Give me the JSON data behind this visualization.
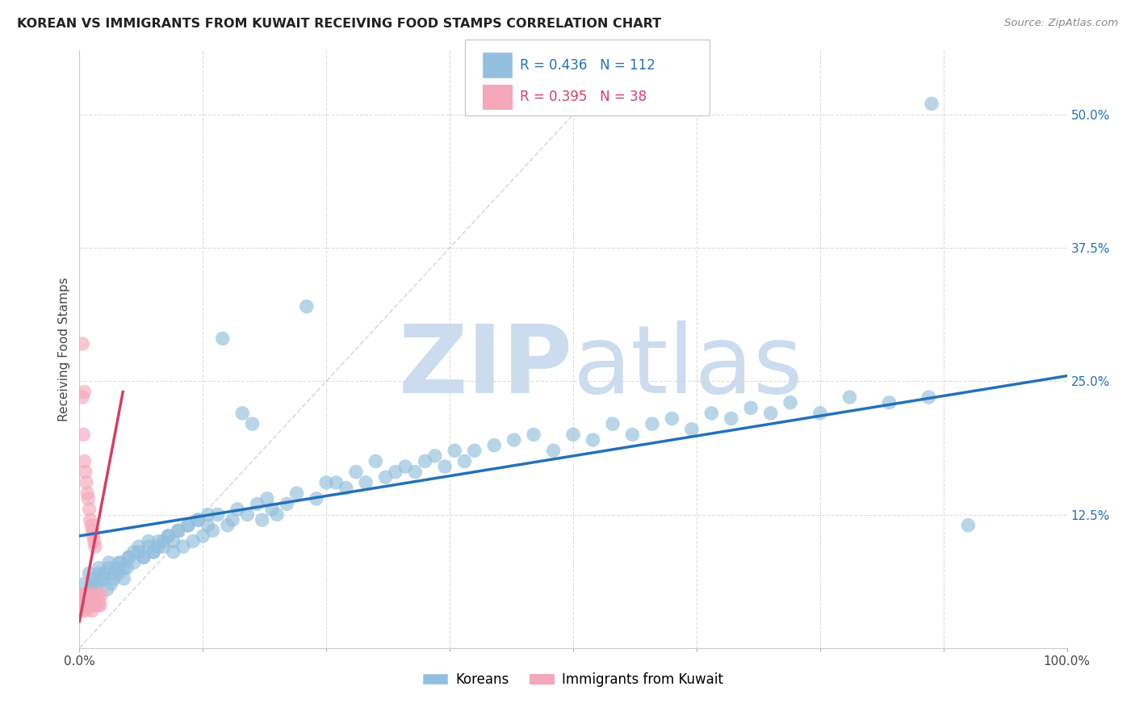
{
  "title": "KOREAN VS IMMIGRANTS FROM KUWAIT RECEIVING FOOD STAMPS CORRELATION CHART",
  "source": "Source: ZipAtlas.com",
  "ylabel": "Receiving Food Stamps",
  "xlim": [
    0,
    1
  ],
  "ylim": [
    0,
    0.56
  ],
  "xticks": [
    0,
    0.125,
    0.25,
    0.375,
    0.5,
    0.625,
    0.75,
    0.875,
    1.0
  ],
  "xticklabels": [
    "0.0%",
    "",
    "",
    "",
    "",
    "",
    "",
    "",
    "100.0%"
  ],
  "ytick_positions": [
    0.125,
    0.25,
    0.375,
    0.5
  ],
  "ytick_labels": [
    "12.5%",
    "25.0%",
    "37.5%",
    "50.0%"
  ],
  "blue_R": 0.436,
  "blue_N": 112,
  "pink_R": 0.395,
  "pink_N": 38,
  "blue_color": "#92bfdd",
  "pink_color": "#f4a8ba",
  "blue_line_color": "#2471b8",
  "pink_line_color": "#d63f60",
  "diagonal_color": "#cccccc",
  "watermark_color": "#ccdcee",
  "background_color": "#ffffff",
  "grid_color": "#dddddd",
  "legend_blue_label": "Koreans",
  "legend_pink_label": "Immigrants from Kuwait",
  "blue_line_x0": 0.0,
  "blue_line_y0": 0.105,
  "blue_line_x1": 1.0,
  "blue_line_y1": 0.255,
  "pink_line_x0": 0.0,
  "pink_line_y0": 0.025,
  "pink_line_x1": 0.044,
  "pink_line_y1": 0.24,
  "blue_scatter_x": [
    0.005,
    0.008,
    0.01,
    0.012,
    0.015,
    0.018,
    0.02,
    0.022,
    0.025,
    0.028,
    0.03,
    0.032,
    0.035,
    0.038,
    0.04,
    0.042,
    0.045,
    0.048,
    0.05,
    0.055,
    0.06,
    0.065,
    0.07,
    0.075,
    0.08,
    0.085,
    0.09,
    0.095,
    0.1,
    0.105,
    0.11,
    0.115,
    0.12,
    0.125,
    0.13,
    0.135,
    0.14,
    0.145,
    0.15,
    0.155,
    0.16,
    0.165,
    0.17,
    0.175,
    0.18,
    0.185,
    0.19,
    0.195,
    0.2,
    0.21,
    0.22,
    0.23,
    0.24,
    0.25,
    0.26,
    0.27,
    0.28,
    0.29,
    0.3,
    0.31,
    0.32,
    0.33,
    0.34,
    0.35,
    0.36,
    0.37,
    0.38,
    0.39,
    0.4,
    0.42,
    0.44,
    0.46,
    0.48,
    0.5,
    0.52,
    0.54,
    0.56,
    0.58,
    0.6,
    0.62,
    0.64,
    0.66,
    0.68,
    0.7,
    0.72,
    0.75,
    0.78,
    0.82,
    0.86,
    0.9,
    0.015,
    0.02,
    0.025,
    0.03,
    0.035,
    0.04,
    0.045,
    0.05,
    0.055,
    0.06,
    0.065,
    0.07,
    0.075,
    0.08,
    0.085,
    0.09,
    0.095,
    0.1,
    0.11,
    0.12,
    0.13,
    0.863
  ],
  "blue_scatter_y": [
    0.06,
    0.05,
    0.07,
    0.055,
    0.065,
    0.06,
    0.075,
    0.065,
    0.07,
    0.055,
    0.08,
    0.06,
    0.065,
    0.075,
    0.07,
    0.08,
    0.065,
    0.075,
    0.085,
    0.09,
    0.095,
    0.085,
    0.1,
    0.09,
    0.095,
    0.1,
    0.105,
    0.09,
    0.11,
    0.095,
    0.115,
    0.1,
    0.12,
    0.105,
    0.115,
    0.11,
    0.125,
    0.29,
    0.115,
    0.12,
    0.13,
    0.22,
    0.125,
    0.21,
    0.135,
    0.12,
    0.14,
    0.13,
    0.125,
    0.135,
    0.145,
    0.32,
    0.14,
    0.155,
    0.155,
    0.15,
    0.165,
    0.155,
    0.175,
    0.16,
    0.165,
    0.17,
    0.165,
    0.175,
    0.18,
    0.17,
    0.185,
    0.175,
    0.185,
    0.19,
    0.195,
    0.2,
    0.185,
    0.2,
    0.195,
    0.21,
    0.2,
    0.21,
    0.215,
    0.205,
    0.22,
    0.215,
    0.225,
    0.22,
    0.23,
    0.22,
    0.235,
    0.23,
    0.235,
    0.115,
    0.06,
    0.07,
    0.065,
    0.075,
    0.07,
    0.08,
    0.075,
    0.085,
    0.08,
    0.09,
    0.085,
    0.095,
    0.09,
    0.1,
    0.095,
    0.105,
    0.1,
    0.11,
    0.115,
    0.12,
    0.125,
    0.51
  ],
  "pink_scatter_x": [
    0.001,
    0.002,
    0.003,
    0.004,
    0.005,
    0.006,
    0.007,
    0.008,
    0.009,
    0.01,
    0.011,
    0.012,
    0.013,
    0.014,
    0.015,
    0.016,
    0.017,
    0.018,
    0.019,
    0.02,
    0.021,
    0.022,
    0.003,
    0.004,
    0.005,
    0.006,
    0.007,
    0.008,
    0.009,
    0.01,
    0.011,
    0.012,
    0.013,
    0.014,
    0.015,
    0.016,
    0.003,
    0.005
  ],
  "pink_scatter_y": [
    0.05,
    0.04,
    0.035,
    0.045,
    0.05,
    0.04,
    0.035,
    0.045,
    0.04,
    0.05,
    0.04,
    0.045,
    0.035,
    0.05,
    0.04,
    0.045,
    0.04,
    0.05,
    0.04,
    0.045,
    0.04,
    0.05,
    0.235,
    0.2,
    0.175,
    0.165,
    0.155,
    0.145,
    0.14,
    0.13,
    0.12,
    0.115,
    0.11,
    0.105,
    0.1,
    0.095,
    0.285,
    0.24
  ]
}
